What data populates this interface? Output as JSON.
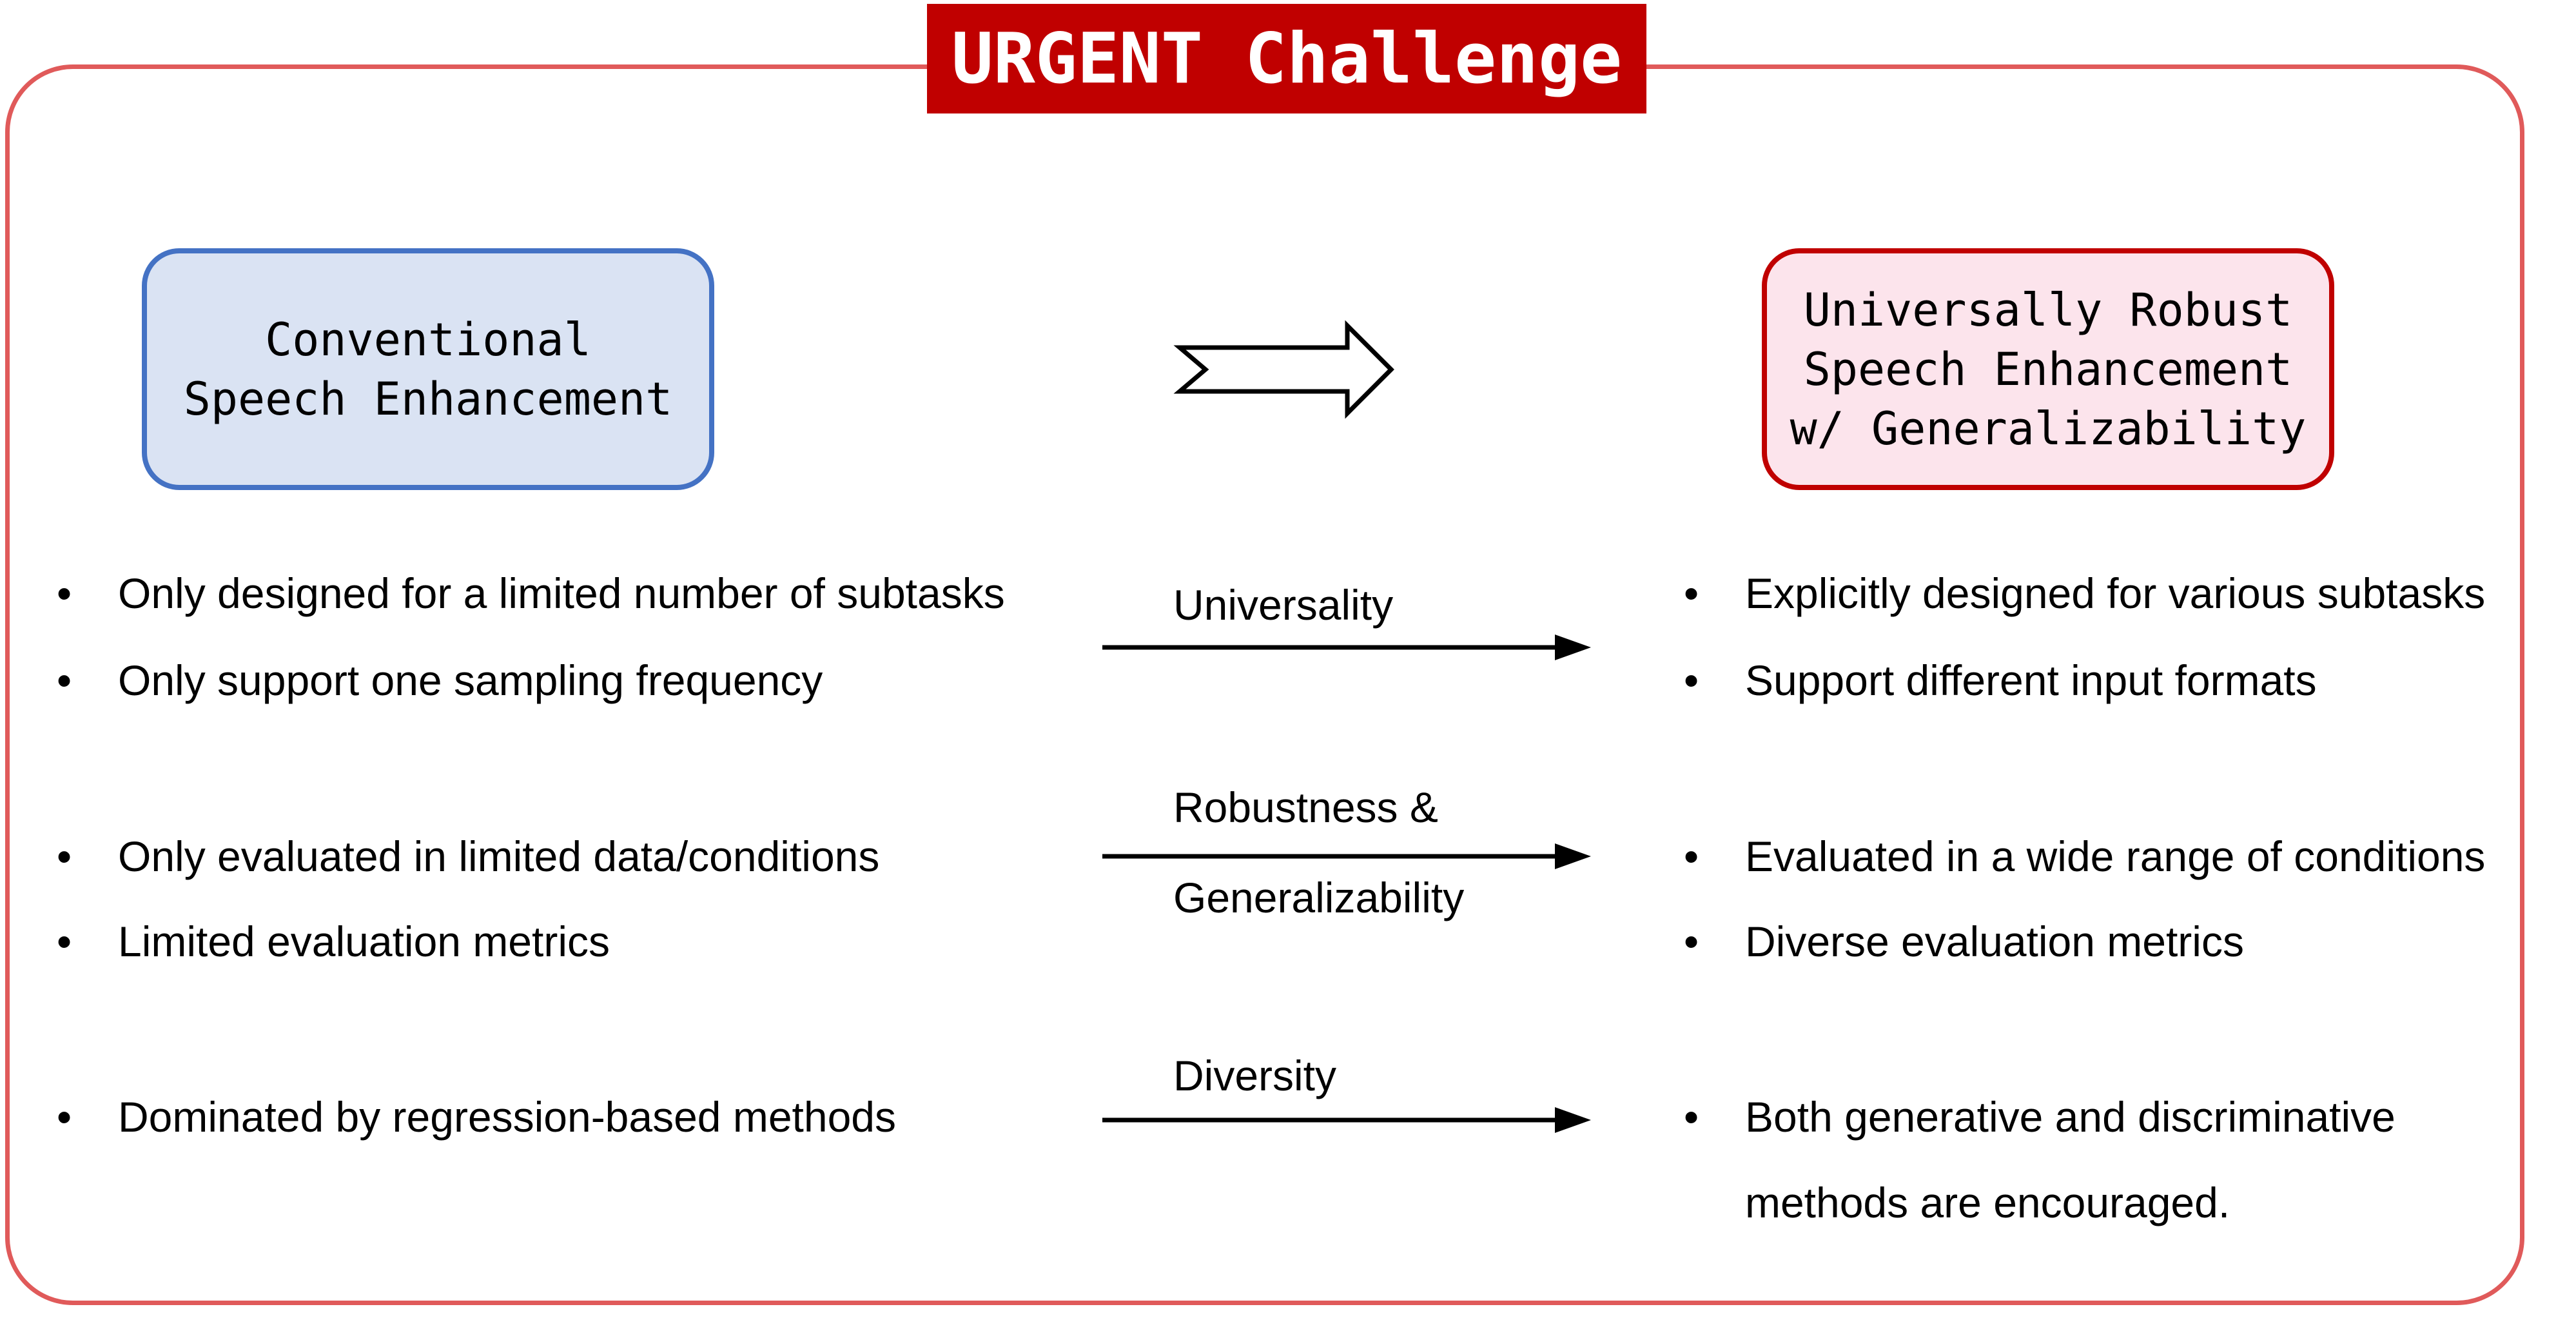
{
  "title": "URGENT Challenge",
  "left_box": {
    "lines": [
      "Conventional",
      "Speech Enhancement"
    ]
  },
  "right_box": {
    "lines": [
      "Universally Robust",
      "Speech Enhancement",
      "w/ Generalizability"
    ]
  },
  "rows": [
    {
      "arrow_label": [
        "Universality"
      ],
      "left": [
        "Only designed for a limited number of subtasks",
        "Only support one sampling frequency"
      ],
      "right": [
        "Explicitly designed for various subtasks",
        "Support different input formats"
      ]
    },
    {
      "arrow_label": [
        "Robustness &",
        "Generalizability"
      ],
      "left": [
        "Only evaluated in limited data/conditions",
        "Limited evaluation metrics"
      ],
      "right": [
        "Evaluated in a wide range of conditions",
        "Diverse evaluation metrics"
      ]
    },
    {
      "arrow_label": [
        "Diversity"
      ],
      "left": [
        "Dominated by regression-based methods"
      ],
      "right": [
        "Both generative and discriminative",
        "methods are encouraged."
      ]
    }
  ],
  "bullet_char": "•",
  "colors": {
    "title_bg": "#c00000",
    "frame": "#e05a5a",
    "left_fill": "#dae3f3",
    "left_border": "#4472c4",
    "right_fill": "#fce4ec",
    "right_border": "#c00000"
  }
}
